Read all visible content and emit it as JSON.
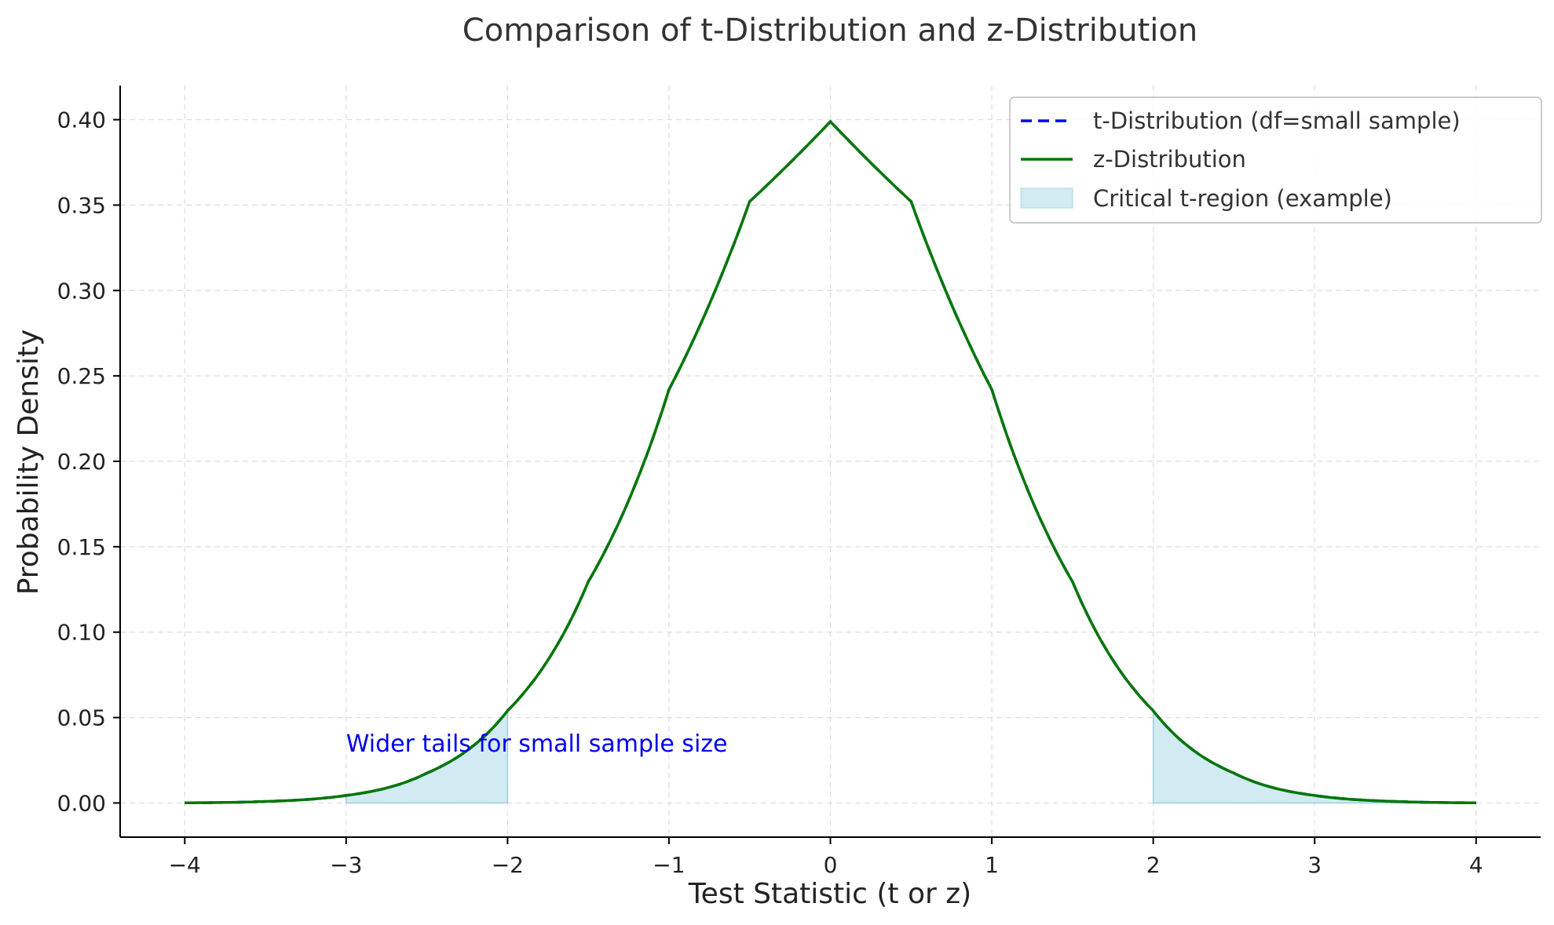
{
  "chart_data": {
    "type": "line",
    "title": "Comparison of t-Distribution and z-Distribution",
    "xlabel": "Test Statistic (t or z)",
    "ylabel": "Probability Density",
    "xlim": [
      -4.4,
      4.4
    ],
    "ylim": [
      -0.02,
      0.42
    ],
    "x_ticks": [
      -4,
      -3,
      -2,
      -1,
      0,
      1,
      2,
      3,
      4
    ],
    "x_tick_labels": [
      "−4",
      "−3",
      "−2",
      "−1",
      "0",
      "1",
      "2",
      "3",
      "4"
    ],
    "y_ticks": [
      0.0,
      0.05,
      0.1,
      0.15,
      0.2,
      0.25,
      0.3,
      0.35,
      0.4
    ],
    "y_tick_labels": [
      "0.00",
      "0.05",
      "0.10",
      "0.15",
      "0.20",
      "0.25",
      "0.30",
      "0.35",
      "0.40"
    ],
    "grid": true,
    "legend_position": "top-right",
    "x": [
      -4.0,
      -3.5,
      -3.0,
      -2.5,
      -2.0,
      -1.5,
      -1.0,
      -0.5,
      0.0,
      0.5,
      1.0,
      1.5,
      2.0,
      2.5,
      3.0,
      3.5,
      4.0
    ],
    "series": [
      {
        "name": "t-Distribution (df=small sample)",
        "style": "dashed",
        "color": "#0000ff",
        "values": [
          0.0001,
          0.0009,
          0.0044,
          0.0175,
          0.054,
          0.1295,
          0.242,
          0.3521,
          0.3989,
          0.3521,
          0.242,
          0.1295,
          0.054,
          0.0175,
          0.0044,
          0.0009,
          0.0001
        ]
      },
      {
        "name": "z-Distribution",
        "style": "solid",
        "color": "#007700",
        "values": [
          0.0001,
          0.0009,
          0.0044,
          0.0175,
          0.054,
          0.1295,
          0.242,
          0.3521,
          0.3989,
          0.3521,
          0.242,
          0.1295,
          0.054,
          0.0175,
          0.0044,
          0.0009,
          0.0001
        ]
      }
    ],
    "shaded_regions": [
      {
        "name": "Critical t-region (example)",
        "from": -3.0,
        "to": -2.0,
        "color": "#add8e6"
      },
      {
        "from": 2.0,
        "to": 4.0,
        "color": "#add8e6"
      }
    ],
    "annotations": [
      {
        "text": "Wider tails for small sample size",
        "x": -3.0,
        "y": 0.03,
        "color": "#0000ee"
      }
    ]
  }
}
